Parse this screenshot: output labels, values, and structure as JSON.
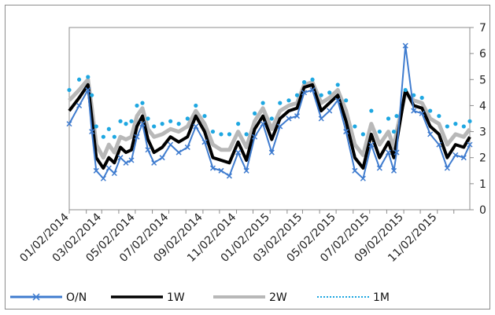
{
  "chart_data": {
    "type": "line",
    "title": "",
    "xlabel": "",
    "ylabel": "",
    "ylim": [
      0,
      7
    ],
    "y_ticks": [
      0,
      1,
      2,
      3,
      4,
      5,
      6,
      7
    ],
    "y_axis_side": "right",
    "grid": false,
    "legend_position": "bottom",
    "x_tick_labels": [
      "01/02/2014",
      "03/02/2014",
      "05/02/2014",
      "07/02/2014",
      "09/02/2014",
      "11/02/2014",
      "01/02/2015",
      "03/02/2015",
      "05/02/2015",
      "07/02/2015",
      "09/02/2015",
      "11/02/2015"
    ],
    "x_range": [
      "2014-01-02",
      "2015-12-31"
    ],
    "series": [
      {
        "name": "O/N",
        "color": "#3f7ccf",
        "marker": "x",
        "x": [
          "2014-01-02",
          "2014-01-20",
          "2014-02-05",
          "2014-02-12",
          "2014-02-20",
          "2014-03-05",
          "2014-03-15",
          "2014-03-25",
          "2014-04-05",
          "2014-04-15",
          "2014-04-25",
          "2014-05-05",
          "2014-05-15",
          "2014-05-25",
          "2014-06-05",
          "2014-06-20",
          "2014-07-05",
          "2014-07-20",
          "2014-08-05",
          "2014-08-20",
          "2014-09-05",
          "2014-09-20",
          "2014-10-05",
          "2014-10-20",
          "2014-11-05",
          "2014-11-20",
          "2014-12-05",
          "2014-12-20",
          "2015-01-05",
          "2015-01-20",
          "2015-02-05",
          "2015-02-20",
          "2015-03-05",
          "2015-03-20",
          "2015-04-05",
          "2015-04-20",
          "2015-05-05",
          "2015-05-20",
          "2015-06-05",
          "2015-06-20",
          "2015-07-05",
          "2015-07-20",
          "2015-08-05",
          "2015-08-15",
          "2015-08-20",
          "2015-09-05",
          "2015-09-20",
          "2015-10-05",
          "2015-10-20",
          "2015-11-05",
          "2015-11-20",
          "2015-12-05",
          "2015-12-20",
          "2015-12-31"
        ],
        "values": [
          3.3,
          4.0,
          4.6,
          3.0,
          1.5,
          1.2,
          1.6,
          1.4,
          2.0,
          1.8,
          1.9,
          2.8,
          3.3,
          2.3,
          1.8,
          2.0,
          2.5,
          2.2,
          2.4,
          3.2,
          2.6,
          1.6,
          1.5,
          1.3,
          2.2,
          1.5,
          2.8,
          3.3,
          2.2,
          3.2,
          3.5,
          3.6,
          4.5,
          4.6,
          3.5,
          3.8,
          4.2,
          3.0,
          1.5,
          1.2,
          2.5,
          1.6,
          2.2,
          1.5,
          2.2,
          6.3,
          3.8,
          3.7,
          2.9,
          2.5,
          1.6,
          2.1,
          2.0,
          2.5
        ]
      },
      {
        "name": "1W",
        "color": "#000000",
        "marker": "none",
        "x": [
          "2014-01-02",
          "2014-01-20",
          "2014-02-05",
          "2014-02-12",
          "2014-02-20",
          "2014-03-05",
          "2014-03-15",
          "2014-03-25",
          "2014-04-05",
          "2014-04-15",
          "2014-04-25",
          "2014-05-05",
          "2014-05-15",
          "2014-05-25",
          "2014-06-05",
          "2014-06-20",
          "2014-07-05",
          "2014-07-20",
          "2014-08-05",
          "2014-08-20",
          "2014-09-05",
          "2014-09-20",
          "2014-10-05",
          "2014-10-20",
          "2014-11-05",
          "2014-11-20",
          "2014-12-05",
          "2014-12-20",
          "2015-01-05",
          "2015-01-20",
          "2015-02-05",
          "2015-02-20",
          "2015-03-05",
          "2015-03-20",
          "2015-04-05",
          "2015-04-20",
          "2015-05-05",
          "2015-05-20",
          "2015-06-05",
          "2015-06-20",
          "2015-07-05",
          "2015-07-20",
          "2015-08-05",
          "2015-08-15",
          "2015-08-20",
          "2015-09-05",
          "2015-09-20",
          "2015-10-05",
          "2015-10-20",
          "2015-11-05",
          "2015-11-20",
          "2015-12-05",
          "2015-12-20",
          "2015-12-31"
        ],
        "values": [
          3.8,
          4.3,
          4.8,
          3.5,
          2.0,
          1.6,
          2.0,
          1.8,
          2.4,
          2.2,
          2.3,
          3.2,
          3.6,
          2.7,
          2.2,
          2.4,
          2.8,
          2.6,
          2.8,
          3.6,
          3.0,
          2.0,
          1.9,
          1.8,
          2.6,
          1.9,
          3.1,
          3.6,
          2.7,
          3.5,
          3.8,
          3.9,
          4.7,
          4.8,
          3.8,
          4.1,
          4.4,
          3.4,
          2.0,
          1.6,
          2.9,
          2.0,
          2.6,
          2.0,
          2.6,
          4.6,
          4.0,
          3.9,
          3.2,
          2.9,
          2.0,
          2.5,
          2.4,
          2.8
        ]
      },
      {
        "name": "2W",
        "color": "#b8b8b8",
        "marker": "none",
        "x": [
          "2014-01-02",
          "2014-01-20",
          "2014-02-05",
          "2014-02-12",
          "2014-02-20",
          "2014-03-05",
          "2014-03-15",
          "2014-03-25",
          "2014-04-05",
          "2014-04-15",
          "2014-04-25",
          "2014-05-05",
          "2014-05-15",
          "2014-05-25",
          "2014-06-05",
          "2014-06-20",
          "2014-07-05",
          "2014-07-20",
          "2014-08-05",
          "2014-08-20",
          "2014-09-05",
          "2014-09-20",
          "2014-10-05",
          "2014-10-20",
          "2014-11-05",
          "2014-11-20",
          "2014-12-05",
          "2014-12-20",
          "2015-01-05",
          "2015-01-20",
          "2015-02-05",
          "2015-02-20",
          "2015-03-05",
          "2015-03-20",
          "2015-04-05",
          "2015-04-20",
          "2015-05-05",
          "2015-05-20",
          "2015-06-05",
          "2015-06-20",
          "2015-07-05",
          "2015-07-20",
          "2015-08-05",
          "2015-08-15",
          "2015-08-20",
          "2015-09-05",
          "2015-09-20",
          "2015-10-05",
          "2015-10-20",
          "2015-11-05",
          "2015-11-20",
          "2015-12-05",
          "2015-12-20",
          "2015-12-31"
        ],
        "values": [
          4.2,
          4.6,
          5.0,
          3.9,
          2.5,
          2.0,
          2.5,
          2.2,
          2.8,
          2.7,
          2.8,
          3.6,
          3.9,
          3.1,
          2.8,
          2.9,
          3.1,
          3.0,
          3.2,
          3.8,
          3.3,
          2.5,
          2.3,
          2.3,
          3.0,
          2.4,
          3.4,
          3.9,
          3.1,
          3.8,
          4.0,
          4.1,
          4.8,
          4.9,
          4.1,
          4.3,
          4.6,
          3.8,
          2.5,
          2.1,
          3.3,
          2.5,
          3.0,
          2.4,
          3.0,
          4.5,
          4.2,
          4.1,
          3.5,
          3.3,
          2.5,
          2.9,
          2.8,
          3.1
        ]
      },
      {
        "name": "1M",
        "color": "#1ea7e1",
        "marker": "dot",
        "x": [
          "2014-01-02",
          "2014-01-20",
          "2014-02-05",
          "2014-02-12",
          "2014-02-20",
          "2014-03-05",
          "2014-03-15",
          "2014-03-25",
          "2014-04-05",
          "2014-04-15",
          "2014-04-25",
          "2014-05-05",
          "2014-05-15",
          "2014-05-25",
          "2014-06-05",
          "2014-06-20",
          "2014-07-05",
          "2014-07-20",
          "2014-08-05",
          "2014-08-20",
          "2014-09-05",
          "2014-09-20",
          "2014-10-05",
          "2014-10-20",
          "2014-11-05",
          "2014-11-20",
          "2014-12-05",
          "2014-12-20",
          "2015-01-05",
          "2015-01-20",
          "2015-02-05",
          "2015-02-20",
          "2015-03-05",
          "2015-03-20",
          "2015-04-05",
          "2015-04-20",
          "2015-05-05",
          "2015-05-20",
          "2015-06-05",
          "2015-06-20",
          "2015-07-05",
          "2015-07-20",
          "2015-08-05",
          "2015-08-15",
          "2015-08-20",
          "2015-09-05",
          "2015-09-20",
          "2015-10-05",
          "2015-10-20",
          "2015-11-05",
          "2015-11-20",
          "2015-12-05",
          "2015-12-20",
          "2015-12-31"
        ],
        "values": [
          4.6,
          5.0,
          5.1,
          4.4,
          3.2,
          2.8,
          3.1,
          2.8,
          3.4,
          3.3,
          3.4,
          4.0,
          4.1,
          3.5,
          3.2,
          3.3,
          3.4,
          3.3,
          3.5,
          4.0,
          3.6,
          3.0,
          2.9,
          2.9,
          3.3,
          2.9,
          3.7,
          4.1,
          3.5,
          4.1,
          4.2,
          4.4,
          4.9,
          5.0,
          4.4,
          4.5,
          4.8,
          4.2,
          3.2,
          2.9,
          3.8,
          3.0,
          3.5,
          3.0,
          3.6,
          4.6,
          4.4,
          4.3,
          3.8,
          3.6,
          3.2,
          3.3,
          3.2,
          3.4
        ]
      }
    ]
  }
}
